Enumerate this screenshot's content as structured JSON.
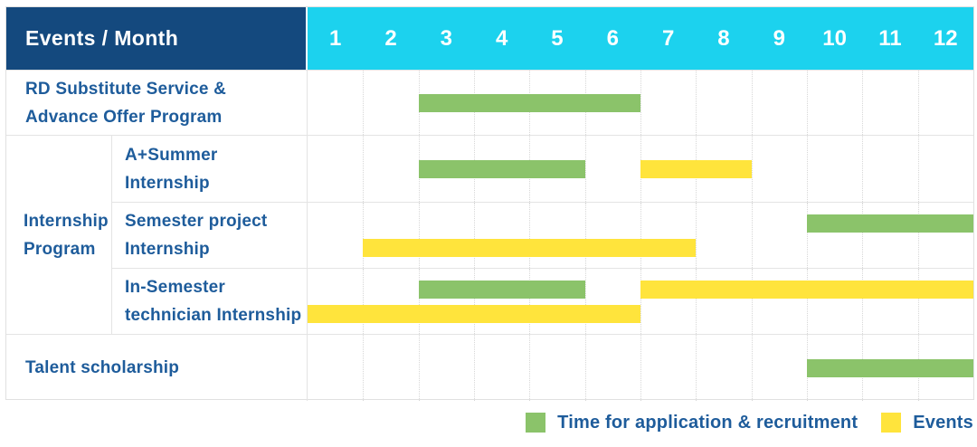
{
  "colors": {
    "navy": "#14497E",
    "cyan": "#1CD2EE",
    "green": "#8BC36A",
    "yellow": "#FFE43C",
    "label_blue": "#1E5C9B"
  },
  "header": {
    "title": "Events / Month",
    "months": [
      "1",
      "2",
      "3",
      "4",
      "5",
      "6",
      "7",
      "8",
      "9",
      "10",
      "11",
      "12"
    ]
  },
  "group": {
    "label": "Internship\nProgram"
  },
  "rows": [
    {
      "label": "RD Substitute Service &\nAdvance Offer Program",
      "bars": [
        {
          "color": "green",
          "start": 3,
          "end": 6,
          "lane": "center"
        }
      ]
    },
    {
      "label": "A+Summer\nInternship",
      "bars": [
        {
          "color": "green",
          "start": 3,
          "end": 5,
          "lane": "center"
        },
        {
          "color": "yellow",
          "start": 7,
          "end": 8,
          "lane": "center"
        }
      ]
    },
    {
      "label": "Semester project\nInternship",
      "bars": [
        {
          "color": "green",
          "start": 10,
          "end": 12,
          "lane": "upper"
        },
        {
          "color": "yellow",
          "start": 2,
          "end": 7,
          "lane": "lower"
        }
      ]
    },
    {
      "label": "In-Semester\ntechnician Internship",
      "bars": [
        {
          "color": "green",
          "start": 3,
          "end": 5,
          "lane": "upper"
        },
        {
          "color": "yellow",
          "start": 7,
          "end": 12,
          "lane": "upper"
        },
        {
          "color": "yellow",
          "start": 1,
          "end": 6,
          "lane": "lower"
        }
      ]
    },
    {
      "label": "Talent scholarship",
      "bars": [
        {
          "color": "green",
          "start": 10,
          "end": 12,
          "lane": "center"
        }
      ]
    }
  ],
  "legend": [
    {
      "label": "Time for application & recruitment",
      "color": "green"
    },
    {
      "label": "Events",
      "color": "yellow"
    }
  ],
  "chart_data": {
    "type": "gantt",
    "title": "Events / Month",
    "x_unit": "month",
    "x_range": [
      1,
      12
    ],
    "grid": true,
    "legend_position": "bottom-right",
    "series_legend": [
      "Time for application & recruitment",
      "Events"
    ],
    "rows": [
      {
        "event": "RD Substitute Service & Advance Offer Program",
        "group": null,
        "spans": [
          {
            "series": "Time for application & recruitment",
            "start_month": 3,
            "end_month": 6
          }
        ]
      },
      {
        "event": "A+Summer Internship",
        "group": "Internship Program",
        "spans": [
          {
            "series": "Time for application & recruitment",
            "start_month": 3,
            "end_month": 5
          },
          {
            "series": "Events",
            "start_month": 7,
            "end_month": 8
          }
        ]
      },
      {
        "event": "Semester project Internship",
        "group": "Internship Program",
        "spans": [
          {
            "series": "Time for application & recruitment",
            "start_month": 10,
            "end_month": 12
          },
          {
            "series": "Events",
            "start_month": 2,
            "end_month": 7
          }
        ]
      },
      {
        "event": "In-Semester technician Internship",
        "group": "Internship Program",
        "spans": [
          {
            "series": "Time for application & recruitment",
            "start_month": 3,
            "end_month": 5
          },
          {
            "series": "Events",
            "start_month": 7,
            "end_month": 12
          },
          {
            "series": "Events",
            "start_month": 1,
            "end_month": 6
          }
        ]
      },
      {
        "event": "Talent scholarship",
        "group": null,
        "spans": [
          {
            "series": "Time for application & recruitment",
            "start_month": 10,
            "end_month": 12
          }
        ]
      }
    ]
  }
}
